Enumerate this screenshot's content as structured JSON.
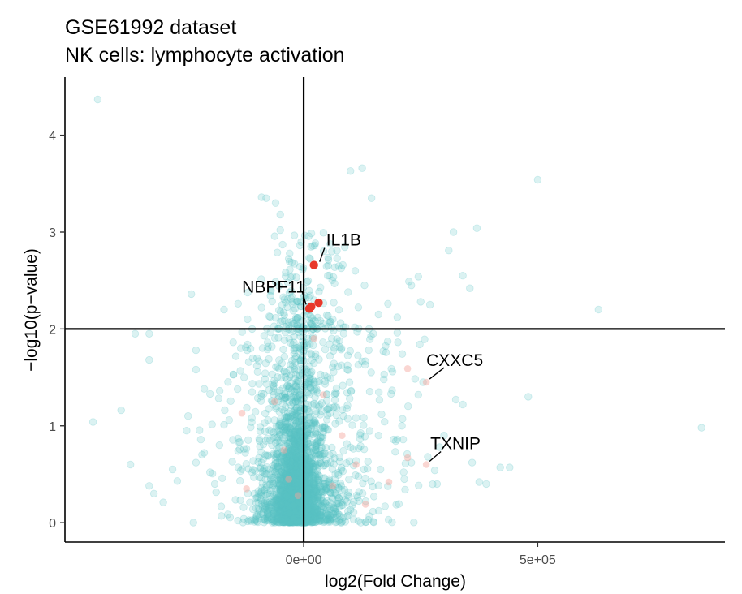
{
  "chart_data": {
    "type": "scatter",
    "title": "GSE61992 dataset",
    "subtitle": "NK cells: lymphocyte activation",
    "xlabel": "log2(Fold Change)",
    "ylabel": "−log10(p−value)",
    "xlim": [
      -510000,
      900000
    ],
    "ylim": [
      -0.2,
      4.6
    ],
    "x_ticks": [
      {
        "value": 0,
        "label": "0e+00"
      },
      {
        "value": 500000,
        "label": "5e+05"
      }
    ],
    "y_ticks": [
      0,
      1,
      2,
      3,
      4
    ],
    "reference_lines": {
      "vline_x": 0,
      "hline_y": 2
    },
    "grid": false,
    "colors": {
      "background_points": "#5bc3c6",
      "highlight_points": "#e8382a",
      "faint_highlight_points": "#f4a39c",
      "axis": "#000000"
    },
    "highlighted_genes": [
      {
        "label": "IL1B",
        "x": 22000,
        "y": 2.66
      },
      {
        "label": "NBPF11",
        "x": 12000,
        "y": 2.21
      },
      {
        "label": "",
        "x": 32000,
        "y": 2.27
      },
      {
        "label": "",
        "x": 16000,
        "y": 2.23
      },
      {
        "label": "CXXC5",
        "x": 262000,
        "y": 1.45
      },
      {
        "label": "TXNIP",
        "x": 262000,
        "y": 0.6
      }
    ],
    "faint_highlight_points": [
      [
        222000,
        1.59
      ],
      [
        -132000,
        1.13
      ],
      [
        222000,
        0.67
      ],
      [
        -42000,
        0.75
      ],
      [
        112000,
        0.6
      ],
      [
        -32000,
        0.45
      ],
      [
        62000,
        0.38
      ],
      [
        -122000,
        0.35
      ],
      [
        182000,
        0.42
      ],
      [
        42000,
        1.32
      ],
      [
        -62000,
        1.25
      ],
      [
        82000,
        0.9
      ],
      [
        -12000,
        0.28
      ],
      [
        132000,
        0.19
      ],
      [
        22000,
        1.9
      ]
    ],
    "outlier_points": [
      [
        -440000,
        4.37
      ],
      [
        500000,
        3.54
      ],
      [
        -90000,
        3.36
      ],
      [
        -80000,
        3.35
      ],
      [
        -60000,
        3.3
      ],
      [
        100000,
        3.63
      ],
      [
        125000,
        3.66
      ],
      [
        145000,
        3.35
      ],
      [
        -240000,
        2.36
      ],
      [
        -170000,
        2.2
      ],
      [
        -140000,
        2.26
      ],
      [
        -50000,
        3.18
      ],
      [
        -50000,
        3.02
      ],
      [
        -45000,
        2.87
      ],
      [
        -30000,
        2.78
      ],
      [
        370000,
        3.04
      ],
      [
        320000,
        3.0
      ],
      [
        310000,
        2.81
      ],
      [
        340000,
        2.55
      ],
      [
        355000,
        2.42
      ],
      [
        630000,
        2.2
      ],
      [
        225000,
        2.49
      ],
      [
        230000,
        2.45
      ],
      [
        245000,
        2.54
      ],
      [
        250000,
        2.28
      ],
      [
        270000,
        2.25
      ],
      [
        180000,
        2.26
      ],
      [
        160000,
        2.15
      ],
      [
        200000,
        2.12
      ],
      [
        130000,
        2.45
      ],
      [
        110000,
        2.6
      ],
      [
        95000,
        2.38
      ],
      [
        75000,
        2.65
      ],
      [
        60000,
        2.8
      ],
      [
        -450000,
        1.04
      ],
      [
        -390000,
        1.16
      ],
      [
        -370000,
        0.6
      ],
      [
        -360000,
        1.95
      ],
      [
        -330000,
        1.95
      ],
      [
        -330000,
        1.68
      ],
      [
        -320000,
        0.3
      ],
      [
        -330000,
        0.38
      ],
      [
        -300000,
        0.21
      ],
      [
        -280000,
        0.55
      ],
      [
        -270000,
        0.43
      ],
      [
        -250000,
        0.95
      ],
      [
        -230000,
        1.58
      ],
      [
        -200000,
        1.33
      ],
      [
        -230000,
        1.78
      ],
      [
        -230000,
        0.62
      ],
      [
        -200000,
        0.52
      ],
      [
        -190000,
        0.4
      ],
      [
        -180000,
        0.8
      ],
      [
        -170000,
        1.01
      ],
      [
        -140000,
        0.87
      ],
      [
        850000,
        0.98
      ],
      [
        480000,
        1.3
      ],
      [
        440000,
        0.57
      ],
      [
        420000,
        0.57
      ],
      [
        390000,
        0.4
      ],
      [
        375000,
        0.42
      ],
      [
        360000,
        0.62
      ],
      [
        340000,
        1.22
      ],
      [
        325000,
        1.27
      ],
      [
        300000,
        0.9
      ],
      [
        290000,
        0.78
      ],
      [
        280000,
        0.54
      ],
      [
        285000,
        0.4
      ],
      [
        265000,
        0.68
      ],
      [
        255000,
        1.45
      ],
      [
        245000,
        1.32
      ],
      [
        230000,
        0.62
      ],
      [
        215000,
        0.45
      ],
      [
        200000,
        0.86
      ],
      [
        210000,
        1.0
      ],
      [
        200000,
        1.96
      ],
      [
        190000,
        1.56
      ],
      [
        170000,
        1.77
      ],
      [
        160000,
        0.9
      ],
      [
        150000,
        0.27
      ],
      [
        -150000,
        1.53
      ],
      [
        -140000,
        0.74
      ],
      [
        -110000,
        0.52
      ],
      [
        -100000,
        0.26
      ],
      [
        -95000,
        0.13
      ],
      [
        -120000,
        1.84
      ],
      [
        -100000,
        1.62
      ],
      [
        -110000,
        2.0
      ],
      [
        -120000,
        2.1
      ],
      [
        -90000,
        2.22
      ]
    ]
  }
}
